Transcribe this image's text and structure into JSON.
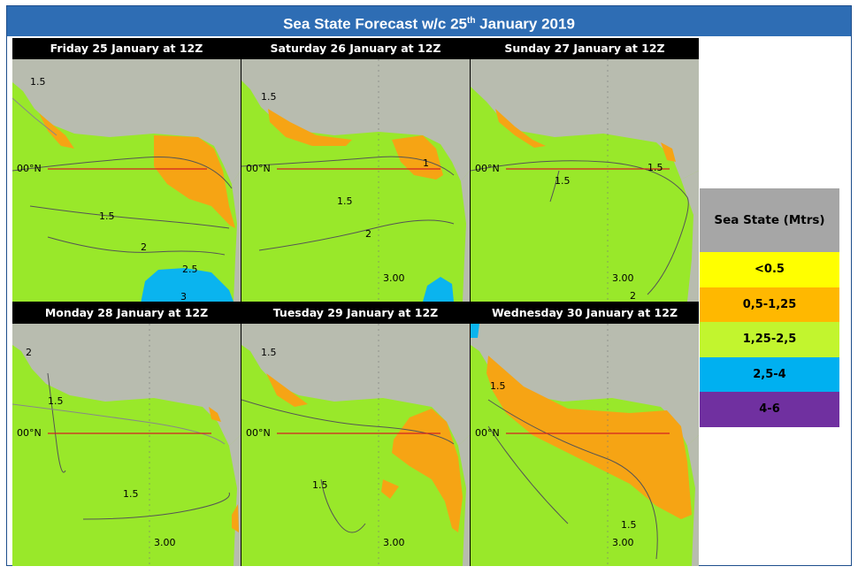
{
  "title": {
    "main": "Sea State Forecast w/c 25",
    "sup": "th",
    "rest": " January 2019"
  },
  "panels": [
    {
      "header": "Friday 25 January at 12Z",
      "contours": [
        "1.5",
        "1.5",
        "2",
        "2.5",
        "3"
      ],
      "eq_label": "00°N"
    },
    {
      "header": "Saturday 26 January at 12Z",
      "contours": [
        "1.5",
        "1",
        "1.5",
        "2"
      ],
      "eq_label": "00°N",
      "lon_label": "3.00"
    },
    {
      "header": "Sunday 27 January at 12Z",
      "contours": [
        "1.5",
        "1.5",
        "2"
      ],
      "eq_label": "00°N",
      "lon_label": "3.00"
    },
    {
      "header": "Monday 28 January at 12Z",
      "contours": [
        "2",
        "1.5",
        "1.5"
      ],
      "eq_label": "00°N",
      "lon_label": "3.00"
    },
    {
      "header": "Tuesday 29 January at 12Z",
      "contours": [
        "1.5",
        "1.5"
      ],
      "eq_label": "00°N",
      "lon_label": "3.00"
    },
    {
      "header": "Wednesday 30 January at 12Z",
      "contours": [
        "1.5",
        "1.5"
      ],
      "eq_label": "00°N",
      "lon_label": "3.00"
    }
  ],
  "legend": {
    "title": "Sea State (Mtrs)",
    "items": [
      {
        "label": "<0.5",
        "color": "#ffff00"
      },
      {
        "label": "0,5-1,25",
        "color": "#ffb800"
      },
      {
        "label": "1,25-2,5",
        "color": "#c2f52e"
      },
      {
        "label": "2,5-4",
        "color": "#00b0f0"
      },
      {
        "label": "4-6",
        "color": "#7030a0"
      }
    ]
  },
  "colors": {
    "sea_moderate": "#99e82a",
    "sea_calm": "#f6a414",
    "sea_rough": "#0ab4ef",
    "land": "#b8bcaf",
    "equator": "#d42020",
    "title_bar": "#2e6db4"
  }
}
